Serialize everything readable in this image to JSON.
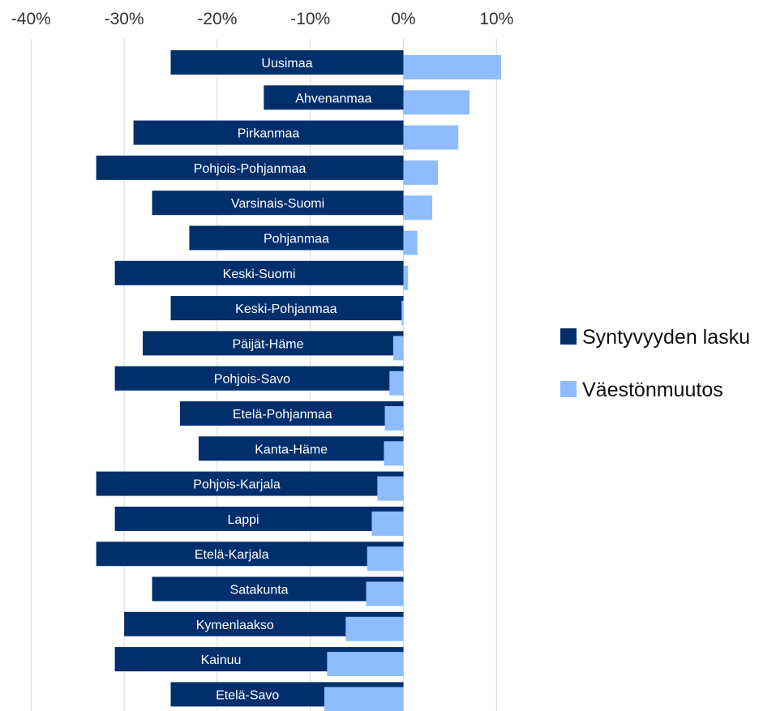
{
  "chart_data": {
    "type": "bar",
    "orientation": "horizontal",
    "xlim": [
      -40,
      10
    ],
    "x_ticks": [
      -40,
      -30,
      -20,
      -10,
      0,
      10
    ],
    "x_tick_labels": [
      "-40%",
      "-30%",
      "-20%",
      "-10%",
      "0%",
      "10%"
    ],
    "grid": true,
    "legend_position": "right",
    "categories": [
      "Uusimaa",
      "Ahvenanmaa",
      "Pirkanmaa",
      "Pohjois-Pohjanmaa",
      "Varsinais-Suomi",
      "Pohjanmaa",
      "Keski-Suomi",
      "Keski-Pohjanmaa",
      "Päijät-Häme",
      "Pohjois-Savo",
      "Etelä-Pohjanmaa",
      "Kanta-Häme",
      "Pohjois-Karjala",
      "Lappi",
      "Etelä-Karjala",
      "Satakunta",
      "Kymenlaakso",
      "Kainuu",
      "Etelä-Savo"
    ],
    "series": [
      {
        "name": "Syntyvyyden lasku",
        "color": "#002f6c",
        "values": [
          -25,
          -15,
          -29,
          -33,
          -27,
          -23,
          -31,
          -25,
          -28,
          -31,
          -24,
          -22,
          -33,
          -31,
          -33,
          -27,
          -30,
          -31,
          -25
        ]
      },
      {
        "name": "Väestönmuutos",
        "color": "#8fbcff",
        "values": [
          10.5,
          7.1,
          5.9,
          3.7,
          3.1,
          1.5,
          0.5,
          -0.2,
          -1.1,
          -1.5,
          -2.0,
          -2.1,
          -2.8,
          -3.4,
          -3.9,
          -4.0,
          -6.2,
          -8.2,
          -8.5
        ]
      }
    ]
  }
}
